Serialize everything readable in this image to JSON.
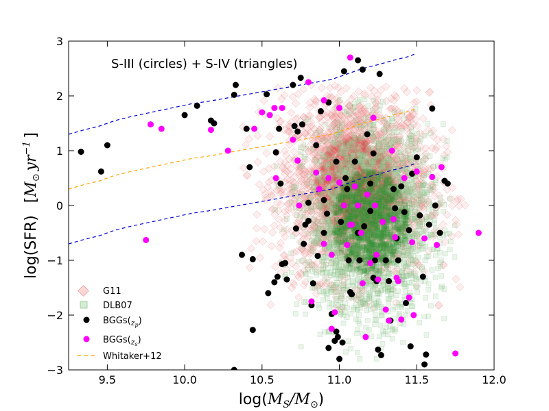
{
  "chart_data": {
    "type": "scatter",
    "title": "",
    "annotation": "S-III (circles) + S-IV (triangles)",
    "xlabel": "log(M_S/M_⊙)",
    "xlabel_parts": {
      "prefix": "log(",
      "main": "M",
      "sub1": "S",
      "slash": "/",
      "main2": "M",
      "sub2": "⊙",
      "suffix": ")"
    },
    "ylabel": "log(SFR)   [M_⊙ yr^-1]",
    "ylabel_parts": {
      "prefix": "log(SFR)",
      "bracket_open": "[",
      "m": "M",
      "sun": "⊙",
      "yr": "yr",
      "exp": "−1",
      "bracket_close": "]"
    },
    "xlim": [
      9.25,
      12.0
    ],
    "ylim": [
      -3,
      3
    ],
    "xticks": [
      "9.5",
      "10.0",
      "10.5",
      "11.0",
      "11.5",
      "12.0"
    ],
    "xtick_values": [
      9.5,
      10.0,
      10.5,
      11.0,
      11.5,
      12.0
    ],
    "yticks": [
      "−3",
      "−2",
      "−1",
      "0",
      "1",
      "2",
      "3"
    ],
    "ytick_values": [
      -3,
      -2,
      -1,
      0,
      1,
      2,
      3
    ],
    "legend_position": "lower-left",
    "legend": [
      {
        "key": "g11",
        "label": "G11",
        "marker": "diamond",
        "color": "#f4a6a6"
      },
      {
        "key": "dlb07",
        "label": "DLB07",
        "marker": "square",
        "color": "#9fd39f"
      },
      {
        "key": "bggs_zp",
        "label": "BGGs(",
        "label_sub": "z",
        "label_subsub": "p",
        "label_close": ")",
        "marker": "circle",
        "color": "#000000"
      },
      {
        "key": "bggs_zs",
        "label": "BGGs(",
        "label_sub": "z",
        "label_subsub": "s",
        "label_close": ")",
        "marker": "circle",
        "color": "#ff00ff"
      },
      {
        "key": "whitaker",
        "label": "Whitaker+12",
        "marker": "dashed-line",
        "color": "#ffa500"
      }
    ],
    "clouds": {
      "g11": {
        "center_x": 11.1,
        "center_y": 0.35,
        "sigma_x": 0.24,
        "sigma_y": 0.85,
        "count": 2600,
        "x_range": [
          10.35,
          11.85
        ],
        "y_range": [
          -1.9,
          2.2
        ]
      },
      "dlb07": {
        "center_x": 11.2,
        "center_y": -0.3,
        "sigma_x": 0.2,
        "sigma_y": 0.85,
        "count": 2600,
        "x_range": [
          10.45,
          11.75
        ],
        "y_range": [
          -2.8,
          2.0
        ]
      }
    },
    "series": [
      {
        "name": "Whitaker+12",
        "type": "line",
        "color": "#ffa500",
        "x": [
          9.25,
          9.35,
          9.45,
          9.55,
          9.65,
          9.75,
          9.85,
          9.95,
          10.05,
          10.15,
          10.25,
          10.35,
          10.45,
          10.55,
          10.65,
          10.75,
          10.85,
          10.95,
          11.05,
          11.15,
          11.25,
          11.35,
          11.45,
          11.5
        ],
        "y": [
          0.3,
          0.38,
          0.45,
          0.55,
          0.62,
          0.68,
          0.74,
          0.8,
          0.86,
          0.9,
          0.95,
          1.0,
          1.05,
          1.1,
          1.15,
          1.2,
          1.25,
          1.3,
          1.4,
          1.5,
          1.57,
          1.65,
          1.72,
          1.78
        ]
      },
      {
        "name": "Upper bound",
        "type": "line",
        "color": "#0000cc",
        "x": [
          9.25,
          9.35,
          9.45,
          9.55,
          9.65,
          9.75,
          9.85,
          9.95,
          10.05,
          10.15,
          10.25,
          10.35,
          10.45,
          10.55,
          10.65,
          10.75,
          10.85,
          10.95,
          11.05,
          11.15,
          11.25,
          11.35,
          11.45,
          11.5
        ],
        "y": [
          1.3,
          1.38,
          1.45,
          1.55,
          1.62,
          1.68,
          1.74,
          1.8,
          1.86,
          1.9,
          1.95,
          2.0,
          2.05,
          2.1,
          2.15,
          2.2,
          2.25,
          2.3,
          2.4,
          2.5,
          2.57,
          2.65,
          2.72,
          2.78
        ]
      },
      {
        "name": "Lower bound",
        "type": "line",
        "color": "#0000cc",
        "x": [
          9.25,
          9.35,
          9.45,
          9.55,
          9.65,
          9.75,
          9.85,
          9.95,
          10.05,
          10.15,
          10.25,
          10.35,
          10.45,
          10.55,
          10.65,
          10.75,
          10.85,
          10.95,
          11.05,
          11.15,
          11.25,
          11.35,
          11.45,
          11.5
        ],
        "y": [
          -0.7,
          -0.62,
          -0.55,
          -0.45,
          -0.38,
          -0.32,
          -0.26,
          -0.2,
          -0.14,
          -0.1,
          -0.05,
          0.0,
          0.05,
          0.1,
          0.15,
          0.2,
          0.25,
          0.3,
          0.4,
          0.5,
          0.57,
          0.65,
          0.72,
          0.78
        ]
      },
      {
        "name": "BGGs(zp)",
        "type": "scatter",
        "color": "#000000",
        "points": [
          [
            9.33,
            0.98
          ],
          [
            9.46,
            0.62
          ],
          [
            9.5,
            1.1
          ],
          [
            10.0,
            1.65
          ],
          [
            10.08,
            1.82
          ],
          [
            10.17,
            1.55
          ],
          [
            10.19,
            1.5
          ],
          [
            10.33,
            2.2
          ],
          [
            10.32,
            2.02
          ],
          [
            10.32,
            -3.0
          ],
          [
            10.37,
            -0.9
          ],
          [
            10.4,
            1.4
          ],
          [
            10.42,
            0.7
          ],
          [
            10.44,
            -0.98
          ],
          [
            10.44,
            -2.27
          ],
          [
            10.53,
            2.03
          ],
          [
            10.54,
            -1.6
          ],
          [
            10.58,
            -1.4
          ],
          [
            10.59,
            0.97
          ],
          [
            10.6,
            -1.3
          ],
          [
            10.61,
            1.4
          ],
          [
            10.62,
            0.4
          ],
          [
            10.63,
            -1.07
          ],
          [
            10.65,
            -1.05
          ],
          [
            10.66,
            -1.35
          ],
          [
            10.7,
            2.2
          ],
          [
            10.71,
            1.45
          ],
          [
            10.72,
            -0.42
          ],
          [
            10.73,
            1.35
          ],
          [
            10.75,
            2.33
          ],
          [
            10.76,
            1.48
          ],
          [
            10.77,
            -0.7
          ],
          [
            10.78,
            -0.35
          ],
          [
            10.8,
            -0.28
          ],
          [
            10.8,
            0.05
          ],
          [
            10.82,
            -1.82
          ],
          [
            10.83,
            -1.42
          ],
          [
            10.85,
            1.1
          ],
          [
            10.86,
            -0.92
          ],
          [
            10.88,
            1.72
          ],
          [
            10.9,
            0.1
          ],
          [
            10.9,
            -0.5
          ],
          [
            10.92,
            -0.15
          ],
          [
            10.93,
            1.88
          ],
          [
            10.93,
            -2.6
          ],
          [
            10.95,
            -1.98
          ],
          [
            10.97,
            -2.47
          ],
          [
            10.98,
            0.8
          ],
          [
            10.98,
            -2.3
          ],
          [
            10.99,
            -2.4
          ],
          [
            11.0,
            -2.8
          ],
          [
            11.01,
            -0.3
          ],
          [
            11.02,
            -2.5
          ],
          [
            11.03,
            2.45
          ],
          [
            11.04,
            0.5
          ],
          [
            11.05,
            0.3
          ],
          [
            11.06,
            -1.0
          ],
          [
            11.07,
            -1.58
          ],
          [
            11.08,
            -1.62
          ],
          [
            11.1,
            0.8
          ],
          [
            11.12,
            2.65
          ],
          [
            11.12,
            -0.5
          ],
          [
            11.13,
            -1.0
          ],
          [
            11.15,
            2.48
          ],
          [
            11.16,
            -0.38
          ],
          [
            11.18,
            1.3
          ],
          [
            11.2,
            -0.1
          ],
          [
            11.2,
            0.4
          ],
          [
            11.22,
            0.95
          ],
          [
            11.22,
            -1.32
          ],
          [
            11.23,
            -1.0
          ],
          [
            11.24,
            -1.38
          ],
          [
            11.25,
            -2.63
          ],
          [
            11.26,
            2.4
          ],
          [
            11.27,
            -2.73
          ],
          [
            11.3,
            -1.0
          ],
          [
            11.32,
            -1.38
          ],
          [
            11.33,
            -2.1
          ],
          [
            11.35,
            0.3
          ],
          [
            11.36,
            -0.05
          ],
          [
            11.37,
            -0.6
          ],
          [
            11.38,
            -1.0
          ],
          [
            11.4,
            0.35
          ],
          [
            11.42,
            -0.12
          ],
          [
            11.43,
            -1.78
          ],
          [
            11.45,
            -0.45
          ],
          [
            11.46,
            -2.57
          ],
          [
            11.47,
            0.58
          ],
          [
            11.5,
            0.88
          ],
          [
            11.52,
            -0.18
          ],
          [
            11.54,
            -1.3
          ],
          [
            11.55,
            -2.9
          ],
          [
            11.56,
            -2.72
          ],
          [
            11.58,
            -0.35
          ],
          [
            11.6,
            1.77
          ],
          [
            11.62,
            0.0
          ],
          [
            11.65,
            -0.5
          ],
          [
            11.68,
            0.45
          ],
          [
            11.7,
            0.4
          ]
        ]
      },
      {
        "name": "BGGs(zs)",
        "type": "scatter",
        "color": "#ff00ff",
        "points": [
          [
            9.75,
            -0.63
          ],
          [
            9.78,
            1.48
          ],
          [
            9.85,
            1.4
          ],
          [
            10.17,
            1.38
          ],
          [
            10.28,
            1.0
          ],
          [
            10.45,
            1.4
          ],
          [
            10.5,
            1.7
          ],
          [
            10.55,
            1.65
          ],
          [
            10.58,
            1.78
          ],
          [
            10.59,
            0.5
          ],
          [
            10.63,
            1.78
          ],
          [
            10.7,
            1.2
          ],
          [
            10.73,
            0.82
          ],
          [
            10.74,
            0.0
          ],
          [
            10.8,
            2.25
          ],
          [
            10.82,
            -1.75
          ],
          [
            10.85,
            0.6
          ],
          [
            10.87,
            0.3
          ],
          [
            10.9,
            -0.7
          ],
          [
            10.93,
            0.5
          ],
          [
            10.95,
            -0.9
          ],
          [
            10.97,
            -1.95
          ],
          [
            11.0,
            1.78
          ],
          [
            11.0,
            0.42
          ],
          [
            11.03,
            0.0
          ],
          [
            11.05,
            -0.72
          ],
          [
            11.07,
            -0.35
          ],
          [
            11.08,
            -0.35
          ],
          [
            11.1,
            0.35
          ],
          [
            11.12,
            0.0
          ],
          [
            11.14,
            -0.5
          ],
          [
            11.15,
            -1.42
          ],
          [
            11.17,
            -2.4
          ],
          [
            11.18,
            0.2
          ],
          [
            11.2,
            -1.05
          ],
          [
            11.22,
            1.6
          ],
          [
            11.23,
            0.0
          ],
          [
            11.24,
            -0.9
          ],
          [
            11.25,
            -1.35
          ],
          [
            11.28,
            -0.3
          ],
          [
            11.3,
            -1.9
          ],
          [
            11.32,
            -2.1
          ],
          [
            11.34,
            1.0
          ],
          [
            11.36,
            -0.58
          ],
          [
            11.37,
            -1.32
          ],
          [
            11.38,
            -1.38
          ],
          [
            11.4,
            -2.08
          ],
          [
            11.42,
            0.5
          ],
          [
            11.45,
            -1.68
          ],
          [
            11.47,
            -0.67
          ],
          [
            11.48,
            -2.0
          ],
          [
            11.5,
            0.62
          ],
          [
            11.55,
            -0.6
          ],
          [
            11.6,
            0.52
          ],
          [
            11.63,
            -0.72
          ],
          [
            11.66,
            0.7
          ],
          [
            11.75,
            -2.7
          ],
          [
            11.9,
            -0.5
          ],
          [
            10.9,
            1.92
          ],
          [
            10.95,
            -2.25
          ],
          [
            11.07,
            2.7
          ],
          [
            11.35,
            -0.25
          ]
        ]
      }
    ]
  }
}
